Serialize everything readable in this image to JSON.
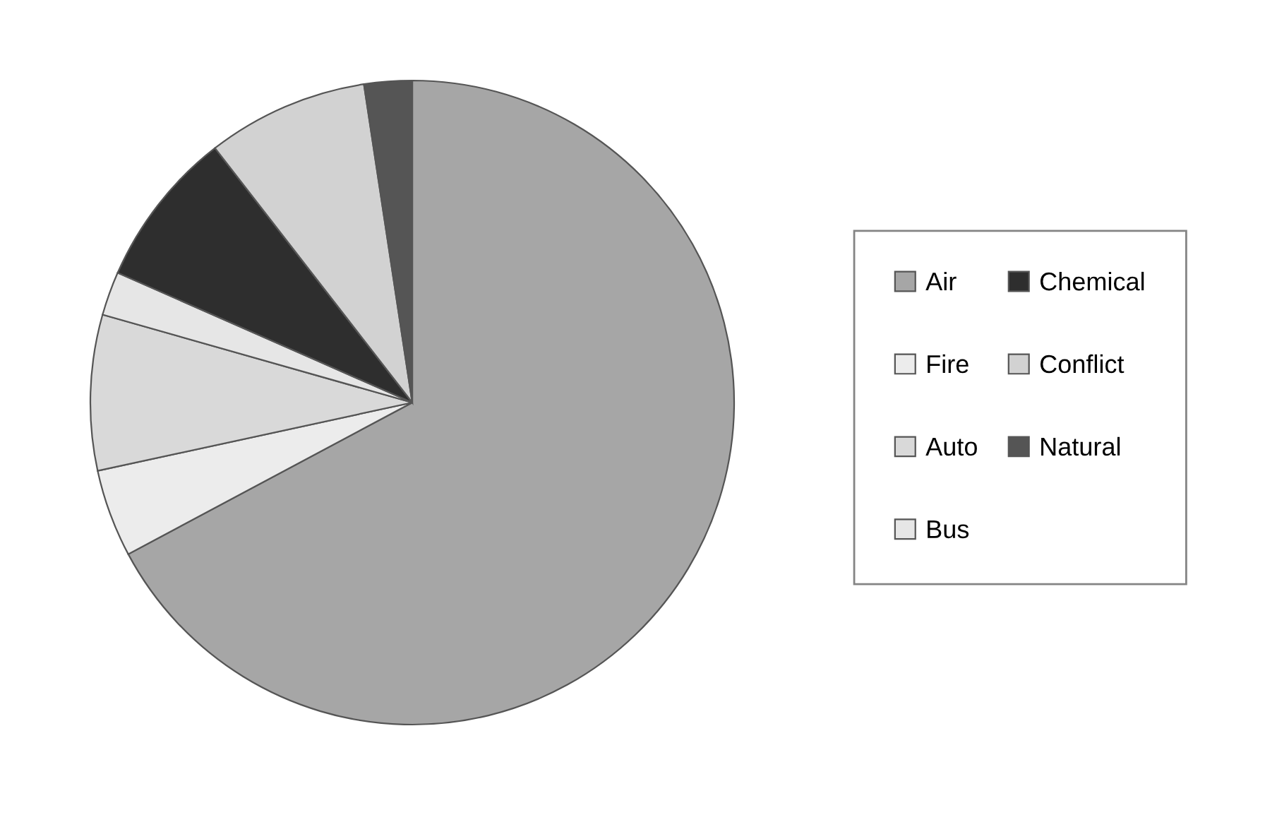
{
  "chart_data": {
    "type": "pie",
    "categories": [
      "Air",
      "Fire",
      "Auto",
      "Bus",
      "Chemical",
      "Conflict",
      "Natural"
    ],
    "values": [
      67.2,
      4.4,
      7.8,
      2.2,
      7.9,
      8.1,
      2.4
    ],
    "colors": [
      "#a6a6a6",
      "#ececec",
      "#d9d9d9",
      "#e6e6e6",
      "#2e2e2e",
      "#d2d2d2",
      "#555555"
    ],
    "legend": "right"
  }
}
